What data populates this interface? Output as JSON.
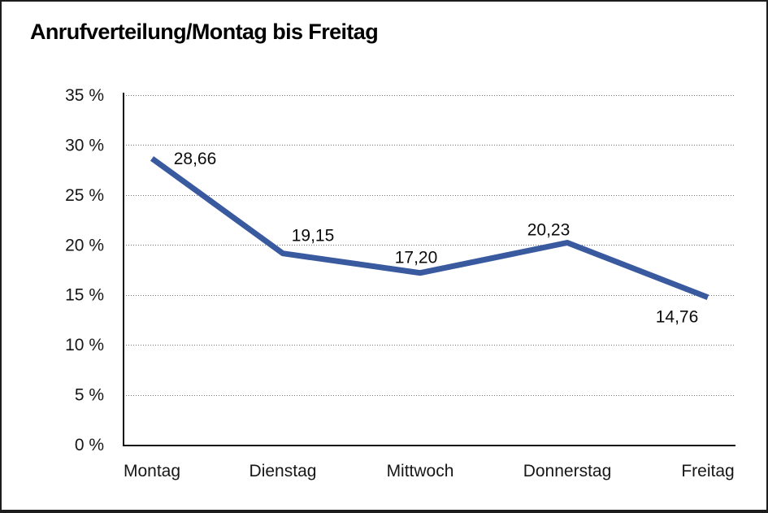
{
  "page": {
    "background": "#ffffff",
    "border_color": "#1d1d1d"
  },
  "chart_data": {
    "type": "line",
    "title": "Anrufverteilung/Montag bis Freitag",
    "categories": [
      "Montag",
      "Dienstag",
      "Mittwoch",
      "Donnerstag",
      "Freitag"
    ],
    "series": [
      {
        "name": "Anrufverteilung",
        "values": [
          28.66,
          19.15,
          17.2,
          20.23,
          14.76
        ],
        "point_labels": [
          "28,66",
          "19,15",
          "17,20",
          "20,23",
          "14,76"
        ],
        "color": "#3a5aa0"
      }
    ],
    "xlabel": "",
    "ylabel": "",
    "ylim": [
      0,
      35
    ],
    "ytick_interval": 5,
    "ytick_labels": [
      "0 %",
      "5 %",
      "10 %",
      "15 %",
      "20 %",
      "25 %",
      "30 %",
      "35 %"
    ],
    "grid": {
      "horizontal": true,
      "style": "dotted",
      "color": "#757575"
    },
    "legend": "none",
    "axis_color": "#121212",
    "text_color": "#161616"
  }
}
